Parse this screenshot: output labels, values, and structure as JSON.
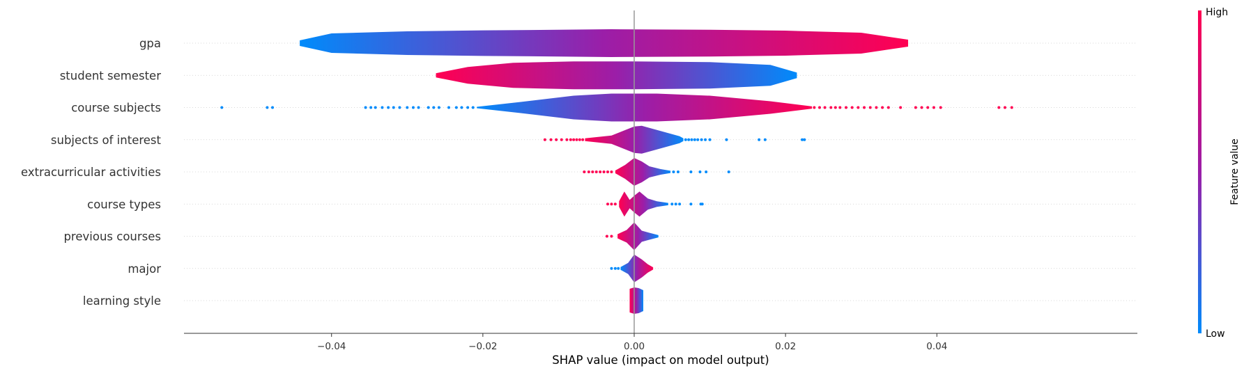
{
  "chart_data": {
    "type": "violin",
    "xlabel": "SHAP value (impact on model output)",
    "ylabel": "",
    "xlim": [
      -0.0595,
      0.0665
    ],
    "xticks": [
      -0.04,
      -0.02,
      0.0,
      0.02,
      0.04
    ],
    "xtick_labels": [
      "−0.04",
      "−0.02",
      "0.00",
      "0.02",
      "0.04"
    ],
    "colorbar": {
      "label": "Feature value",
      "high": "High",
      "low": "Low",
      "high_color": "#ff0052",
      "low_color": "#008bfb"
    },
    "grid": "horizontal dotted per feature",
    "features": [
      {
        "name": "gpa",
        "color_trend": "low_left_high_right",
        "x_range": [
          -0.0442,
          0.0362
        ],
        "density": [
          [
            -0.0442,
            0.2
          ],
          [
            -0.04,
            0.7
          ],
          [
            -0.03,
            0.85
          ],
          [
            -0.02,
            0.92
          ],
          [
            -0.01,
            0.96
          ],
          [
            -0.003,
            1.0
          ],
          [
            0.01,
            0.96
          ],
          [
            0.02,
            0.9
          ],
          [
            0.03,
            0.75
          ],
          [
            0.0362,
            0.25
          ]
        ],
        "outliers_low": [],
        "outliers_high": []
      },
      {
        "name": "student semester",
        "color_trend": "high_left_low_right",
        "x_range": [
          -0.0262,
          0.0215
        ],
        "density": [
          [
            -0.0262,
            0.15
          ],
          [
            -0.022,
            0.6
          ],
          [
            -0.016,
            0.9
          ],
          [
            -0.008,
            1.0
          ],
          [
            0.0,
            1.0
          ],
          [
            0.01,
            0.95
          ],
          [
            0.018,
            0.75
          ],
          [
            0.0215,
            0.2
          ]
        ],
        "outliers_low": [],
        "outliers_high": []
      },
      {
        "name": "course subjects",
        "color_trend": "low_left_high_right",
        "x_range": [
          -0.0208,
          0.0235
        ],
        "density": [
          [
            -0.0208,
            0.05
          ],
          [
            -0.015,
            0.4
          ],
          [
            -0.008,
            0.85
          ],
          [
            -0.003,
            1.0
          ],
          [
            0.003,
            1.0
          ],
          [
            0.01,
            0.85
          ],
          [
            0.018,
            0.45
          ],
          [
            0.0235,
            0.08
          ]
        ],
        "outliers_low": [
          -0.0545,
          -0.0485,
          -0.0478,
          -0.0355,
          -0.0348,
          -0.0342,
          -0.0333,
          -0.0325,
          -0.0318,
          -0.031,
          -0.03,
          -0.0292,
          -0.0285,
          -0.0272,
          -0.0265,
          -0.0258,
          -0.0245,
          -0.0235,
          -0.0228,
          -0.022,
          -0.0213
        ],
        "outliers_high": [
          0.0238,
          0.0245,
          0.0252,
          0.026,
          0.0266,
          0.0272,
          0.028,
          0.0288,
          0.0296,
          0.0304,
          0.0312,
          0.032,
          0.0328,
          0.0336,
          0.0352,
          0.0372,
          0.038,
          0.0388,
          0.0396,
          0.0405,
          0.0482,
          0.049,
          0.0499
        ]
      },
      {
        "name": "subjects of interest",
        "color_trend": "high_left_low_right",
        "x_range": [
          -0.0065,
          0.0065
        ],
        "density": [
          [
            -0.0065,
            0.1
          ],
          [
            -0.003,
            0.3
          ],
          [
            0.0,
            0.95
          ],
          [
            0.001,
            1.0
          ],
          [
            0.003,
            0.7
          ],
          [
            0.006,
            0.25
          ],
          [
            0.0065,
            0.1
          ]
        ],
        "outliers_low": [
          -0.0118,
          -0.011,
          -0.0103,
          -0.0096,
          -0.0089,
          -0.0084,
          -0.008,
          -0.0076,
          -0.0072,
          -0.0068
        ],
        "outliers_high": [
          0.0068,
          0.0072,
          0.0076,
          0.008,
          0.0084,
          0.0089,
          0.0094,
          0.01,
          0.0122,
          0.0165,
          0.0173,
          0.0222,
          0.0225
        ]
      },
      {
        "name": "extracurricular activities",
        "color_trend": "high_left_low_right",
        "x_range": [
          -0.0025,
          0.0048
        ],
        "density": [
          [
            -0.0025,
            0.1
          ],
          [
            -0.0012,
            0.5
          ],
          [
            0.0,
            1.0
          ],
          [
            0.001,
            0.75
          ],
          [
            0.002,
            0.4
          ],
          [
            0.0035,
            0.2
          ],
          [
            0.0048,
            0.08
          ]
        ],
        "outliers_low": [
          -0.0066,
          -0.006,
          -0.0055,
          -0.005,
          -0.0045,
          -0.004,
          -0.0035,
          -0.003
        ],
        "outliers_high": [
          0.0052,
          0.0058,
          0.0075,
          0.0087,
          0.0095,
          0.0125
        ]
      },
      {
        "name": "course types",
        "color_trend": "high_left_low_right",
        "x_range": [
          -0.002,
          0.0045
        ],
        "density": [
          [
            -0.002,
            0.2
          ],
          [
            -0.0013,
            0.9
          ],
          [
            -0.0006,
            0.3
          ],
          [
            0.0,
            0.6
          ],
          [
            0.0007,
            0.9
          ],
          [
            0.0018,
            0.4
          ],
          [
            0.003,
            0.2
          ],
          [
            0.0045,
            0.08
          ]
        ],
        "outliers_low": [
          -0.0035,
          -0.003,
          -0.0025
        ],
        "outliers_high": [
          0.005,
          0.0055,
          0.006,
          0.0075,
          0.0088,
          0.009
        ]
      },
      {
        "name": "previous courses",
        "color_trend": "high_left_low_right",
        "x_range": [
          -0.0022,
          0.0032
        ],
        "density": [
          [
            -0.0022,
            0.15
          ],
          [
            -0.001,
            0.45
          ],
          [
            0.0,
            1.0
          ],
          [
            0.001,
            0.4
          ],
          [
            0.002,
            0.25
          ],
          [
            0.0032,
            0.08
          ]
        ],
        "outliers_low": [
          -0.0036,
          -0.003
        ],
        "outliers_high": []
      },
      {
        "name": "major",
        "color_trend": "low_left_high_right",
        "x_range": [
          -0.0018,
          0.0025
        ],
        "density": [
          [
            -0.0018,
            0.1
          ],
          [
            -0.0008,
            0.4
          ],
          [
            0.0,
            1.0
          ],
          [
            0.001,
            0.65
          ],
          [
            0.0018,
            0.3
          ],
          [
            0.0025,
            0.08
          ]
        ],
        "outliers_low": [
          -0.003,
          -0.0025,
          -0.0021
        ],
        "outliers_high": []
      },
      {
        "name": "learning style",
        "color_trend": "high_left_low_right",
        "x_range": [
          -0.0006,
          0.0012
        ],
        "density": [
          [
            -0.0006,
            0.85
          ],
          [
            0.0,
            0.95
          ],
          [
            0.0006,
            0.9
          ],
          [
            0.0012,
            0.75
          ]
        ],
        "outliers_low": [],
        "outliers_high": []
      }
    ]
  }
}
